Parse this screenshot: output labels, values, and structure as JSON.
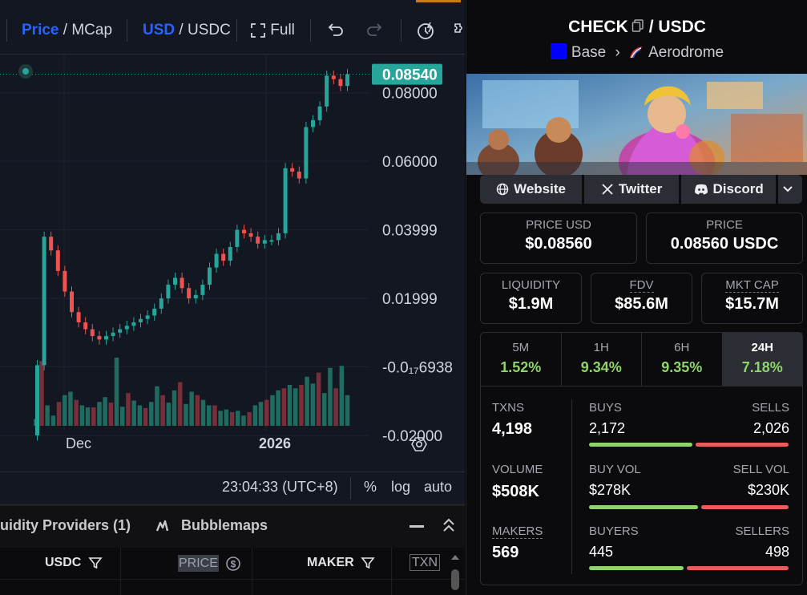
{
  "toolbar": {
    "price_label": "Price",
    "mcap_label": "MCap",
    "usd_label": "USD",
    "usdc_label": "USDC",
    "full_label": "Full"
  },
  "chart": {
    "current_price_tag": "0.08540",
    "price_axis": [
      "0.08000",
      "0.06000",
      "0.03999",
      "0.01999",
      "-0.0₁₇6938",
      "-0.02000"
    ],
    "date_axis": [
      "Dec",
      "2026"
    ],
    "time_label": "23:04:33 (UTC+8)",
    "options": [
      "%",
      "log",
      "auto"
    ]
  },
  "chart_data": {
    "type": "candlestick",
    "title": "",
    "ylabel": "",
    "xlabel": "",
    "ylim": [
      -0.02,
      0.09
    ],
    "candles_close_approx": [
      0.0005,
      0.038,
      0.034,
      0.028,
      0.022,
      0.016,
      0.013,
      0.011,
      0.009,
      0.008,
      0.009,
      0.01,
      0.011,
      0.012,
      0.013,
      0.014,
      0.015,
      0.017,
      0.02,
      0.024,
      0.026,
      0.023,
      0.02,
      0.021,
      0.024,
      0.029,
      0.033,
      0.031,
      0.035,
      0.04,
      0.039,
      0.038,
      0.036,
      0.037,
      0.037,
      0.039,
      0.058,
      0.057,
      0.055,
      0.07,
      0.072,
      0.076,
      0.085,
      0.084,
      0.082,
      0.0854
    ],
    "current_price": 0.0854
  },
  "volume_data": {
    "values_relative": [
      0.1,
      0.95,
      0.3,
      0.15,
      0.35,
      0.45,
      0.5,
      0.38,
      0.3,
      0.27,
      0.27,
      0.35,
      0.42,
      0.34,
      1.0,
      0.28,
      0.48,
      0.37,
      0.3,
      0.26,
      0.35,
      0.58,
      0.45,
      0.34,
      0.52,
      0.64,
      0.32,
      0.5,
      0.45,
      0.38,
      0.3,
      0.3,
      0.22,
      0.24,
      0.2,
      0.22,
      0.15,
      0.2,
      0.3,
      0.35,
      0.38,
      0.45,
      0.52,
      0.55,
      0.6,
      0.55,
      0.6,
      0.72,
      0.62,
      0.78,
      0.48,
      0.85,
      0.55,
      0.88,
      0.45
    ]
  },
  "bottom_tabs": {
    "providers": "uidity Providers (1)",
    "bubblemaps": "Bubblemaps"
  },
  "table": {
    "headers": [
      "USDC",
      "PRICE",
      "MAKER",
      "TXN"
    ]
  },
  "pair": {
    "base": "CHECK",
    "quote": "USDC",
    "chain": "Base",
    "dex": "Aerodrome"
  },
  "links": {
    "website": "Website",
    "twitter": "Twitter",
    "discord": "Discord"
  },
  "metrics": {
    "price_usd_label": "PRICE USD",
    "price_usd": "$0.08560",
    "price_label": "PRICE",
    "price": "0.08560 USDC",
    "liquidity_label": "LIQUIDITY",
    "liquidity": "$1.9M",
    "fdv_label": "FDV",
    "fdv": "$85.6M",
    "mktcap_label": "MKT CAP",
    "mktcap": "$15.7M"
  },
  "periods": [
    {
      "label": "5M",
      "value": "1.52%"
    },
    {
      "label": "1H",
      "value": "9.34%"
    },
    {
      "label": "6H",
      "value": "9.35%"
    },
    {
      "label": "24H",
      "value": "7.18%"
    }
  ],
  "stats": {
    "txns_label": "TXNS",
    "txns": "4,198",
    "buys_label": "BUYS",
    "buys": "2,172",
    "sells_label": "SELLS",
    "sells": "2,026",
    "volume_label": "VOLUME",
    "volume": "$508K",
    "buyvol_label": "BUY VOL",
    "buyvol": "$278K",
    "sellvol_label": "SELL VOL",
    "sellvol": "$230K",
    "makers_label": "MAKERS",
    "makers": "569",
    "buyers_label": "BUYERS",
    "buyers": "445",
    "sellers_label": "SELLERS",
    "sellers": "498",
    "buys_ratio": 0.517,
    "buyvol_ratio": 0.547,
    "buyers_ratio": 0.472
  },
  "colors": {
    "up": "#26a69a",
    "down": "#ef5350",
    "accent": "#2962ff",
    "positive": "#8fd46b",
    "negative": "#ea5b5b"
  }
}
